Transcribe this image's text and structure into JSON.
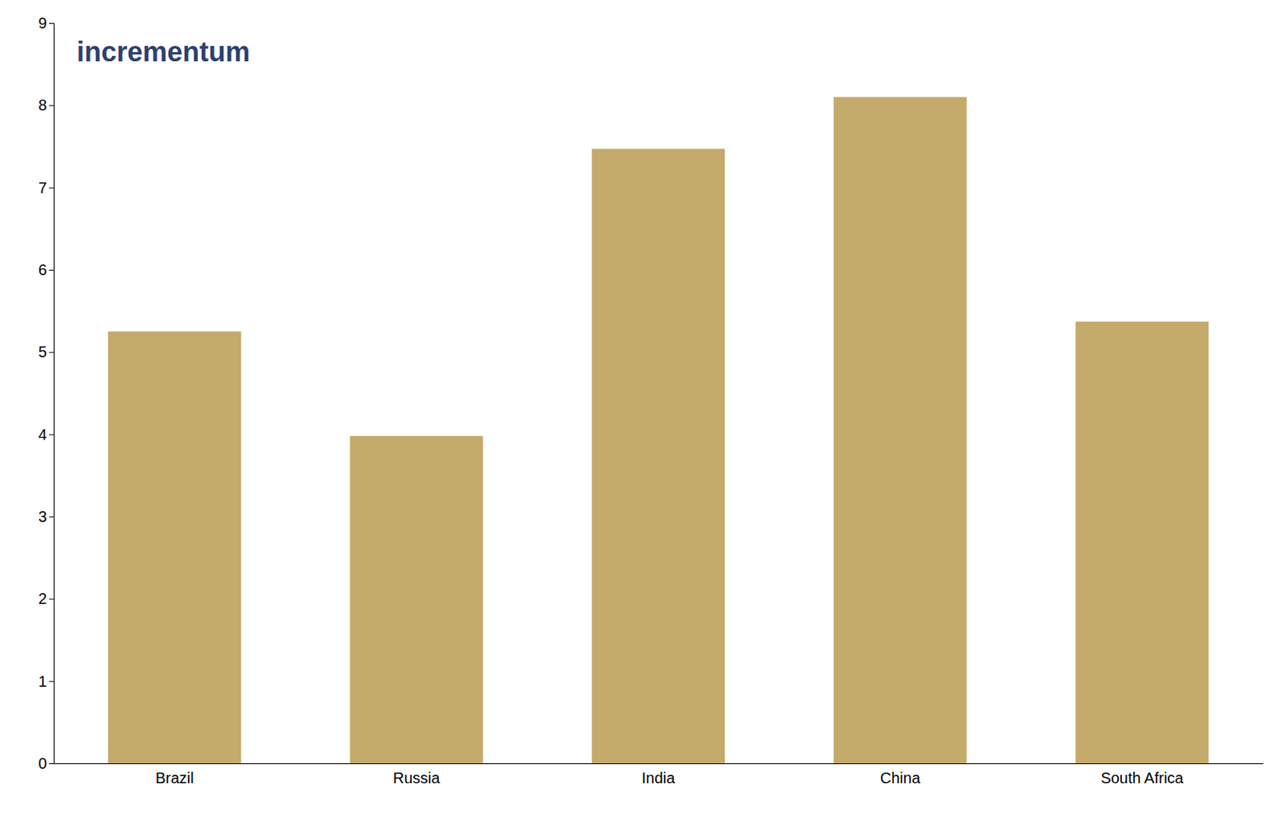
{
  "chart_data": {
    "type": "bar",
    "categories": [
      "Brazil",
      "Russia",
      "India",
      "China",
      "South Africa"
    ],
    "values": [
      5.25,
      3.98,
      7.47,
      8.1,
      5.37
    ],
    "color": "#C4AA6B",
    "ylim": [
      0,
      9
    ],
    "yticks": [
      0,
      1,
      2,
      3,
      4,
      5,
      6,
      7,
      8,
      9
    ],
    "grid": false,
    "annotations": [
      {
        "text": "incrementum",
        "color": "#2E3F6E"
      }
    ]
  }
}
